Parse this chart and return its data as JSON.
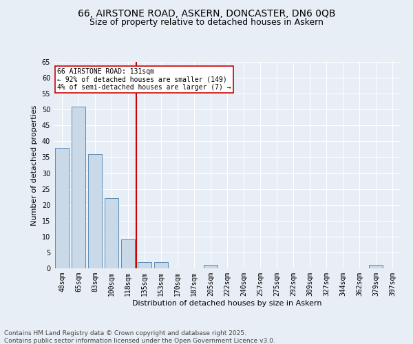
{
  "title_line1": "66, AIRSTONE ROAD, ASKERN, DONCASTER, DN6 0QB",
  "title_line2": "Size of property relative to detached houses in Askern",
  "xlabel": "Distribution of detached houses by size in Askern",
  "ylabel": "Number of detached properties",
  "categories": [
    "48sqm",
    "65sqm",
    "83sqm",
    "100sqm",
    "118sqm",
    "135sqm",
    "153sqm",
    "170sqm",
    "187sqm",
    "205sqm",
    "222sqm",
    "240sqm",
    "257sqm",
    "275sqm",
    "292sqm",
    "309sqm",
    "327sqm",
    "344sqm",
    "362sqm",
    "379sqm",
    "397sqm"
  ],
  "values": [
    38,
    51,
    36,
    22,
    9,
    2,
    2,
    0,
    0,
    1,
    0,
    0,
    0,
    0,
    0,
    0,
    0,
    0,
    0,
    1,
    0
  ],
  "bar_color": "#c9d9e8",
  "bar_edge_color": "#5b8db8",
  "vline_x": 4.5,
  "vline_color": "#cc0000",
  "annotation_text": "66 AIRSTONE ROAD: 131sqm\n← 92% of detached houses are smaller (149)\n4% of semi-detached houses are larger (7) →",
  "annotation_box_color": "#ffffff",
  "annotation_box_edge": "#cc0000",
  "ylim": [
    0,
    65
  ],
  "yticks": [
    0,
    5,
    10,
    15,
    20,
    25,
    30,
    35,
    40,
    45,
    50,
    55,
    60,
    65
  ],
  "background_color": "#e8eef5",
  "footer_line1": "Contains HM Land Registry data © Crown copyright and database right 2025.",
  "footer_line2": "Contains public sector information licensed under the Open Government Licence v3.0.",
  "title_fontsize": 10,
  "subtitle_fontsize": 9,
  "axis_label_fontsize": 8,
  "tick_fontsize": 7,
  "footer_fontsize": 6.5,
  "annot_fontsize": 7
}
